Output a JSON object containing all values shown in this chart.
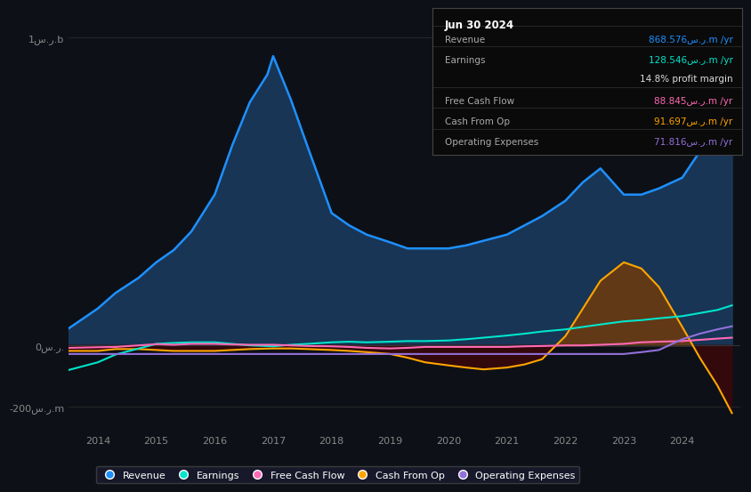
{
  "bg_color": "#0d1117",
  "plot_bg_color": "#0d1117",
  "xlim": [
    2013.5,
    2025.0
  ],
  "ylim": [
    -280,
    1080
  ],
  "yticks": [
    -200,
    0,
    1000
  ],
  "ytick_labels": [
    "-200س.ر.m",
    "0س.ر.",
    "1س.ر.b"
  ],
  "xticks": [
    2014,
    2015,
    2016,
    2017,
    2018,
    2019,
    2020,
    2021,
    2022,
    2023,
    2024
  ],
  "revenue_color": "#1e90ff",
  "revenue_fill": "#1a3a5c",
  "earnings_color": "#00e5cc",
  "fcf_color": "#ff69b4",
  "cashop_color": "#ffa500",
  "opex_color": "#9370db",
  "legend": [
    {
      "label": "Revenue",
      "color": "#1e90ff"
    },
    {
      "label": "Earnings",
      "color": "#00e5cc"
    },
    {
      "label": "Free Cash Flow",
      "color": "#ff69b4"
    },
    {
      "label": "Cash From Op",
      "color": "#ffa500"
    },
    {
      "label": "Operating Expenses",
      "color": "#9370db"
    }
  ],
  "revenue_x": [
    2013.5,
    2014.0,
    2014.3,
    2014.7,
    2015.0,
    2015.3,
    2015.6,
    2016.0,
    2016.3,
    2016.6,
    2016.9,
    2017.0,
    2017.3,
    2017.6,
    2018.0,
    2018.3,
    2018.6,
    2019.0,
    2019.3,
    2019.6,
    2020.0,
    2020.3,
    2020.6,
    2021.0,
    2021.3,
    2021.6,
    2022.0,
    2022.3,
    2022.6,
    2023.0,
    2023.3,
    2023.6,
    2024.0,
    2024.3,
    2024.6,
    2024.85
  ],
  "revenue_y": [
    55,
    120,
    170,
    220,
    270,
    310,
    370,
    490,
    650,
    790,
    880,
    940,
    800,
    640,
    430,
    390,
    360,
    335,
    315,
    315,
    315,
    325,
    340,
    360,
    390,
    420,
    470,
    530,
    575,
    490,
    490,
    510,
    545,
    630,
    730,
    820
  ],
  "earnings_x": [
    2013.5,
    2014.0,
    2014.3,
    2014.7,
    2015.0,
    2015.3,
    2015.6,
    2016.0,
    2016.3,
    2016.6,
    2017.0,
    2017.3,
    2017.6,
    2018.0,
    2018.3,
    2018.6,
    2019.0,
    2019.3,
    2019.6,
    2020.0,
    2020.3,
    2020.6,
    2021.0,
    2021.3,
    2021.6,
    2022.0,
    2022.3,
    2022.6,
    2023.0,
    2023.3,
    2023.6,
    2024.0,
    2024.3,
    2024.6,
    2024.85
  ],
  "earnings_y": [
    -80,
    -55,
    -30,
    -10,
    5,
    8,
    10,
    10,
    5,
    0,
    -3,
    2,
    5,
    10,
    12,
    10,
    12,
    14,
    14,
    16,
    20,
    25,
    32,
    38,
    45,
    52,
    60,
    68,
    78,
    82,
    88,
    95,
    105,
    115,
    130
  ],
  "fcf_x": [
    2013.5,
    2014.0,
    2014.3,
    2014.7,
    2015.0,
    2015.3,
    2015.6,
    2016.0,
    2016.3,
    2016.6,
    2017.0,
    2017.3,
    2017.6,
    2018.0,
    2018.3,
    2018.6,
    2019.0,
    2019.3,
    2019.6,
    2020.0,
    2020.3,
    2020.6,
    2021.0,
    2021.3,
    2021.6,
    2022.0,
    2022.3,
    2022.6,
    2023.0,
    2023.3,
    2023.6,
    2024.0,
    2024.3,
    2024.6,
    2024.85
  ],
  "fcf_y": [
    -8,
    -6,
    -5,
    0,
    4,
    2,
    5,
    5,
    3,
    2,
    2,
    0,
    -2,
    -3,
    -5,
    -8,
    -10,
    -8,
    -5,
    -5,
    -5,
    -5,
    -5,
    -3,
    -2,
    0,
    0,
    2,
    5,
    10,
    12,
    14,
    18,
    22,
    25
  ],
  "cashop_x": [
    2013.5,
    2014.0,
    2014.3,
    2014.7,
    2015.0,
    2015.3,
    2015.6,
    2016.0,
    2016.3,
    2016.6,
    2017.0,
    2017.3,
    2017.6,
    2018.0,
    2018.3,
    2018.6,
    2019.0,
    2019.3,
    2019.6,
    2020.0,
    2020.3,
    2020.6,
    2021.0,
    2021.3,
    2021.6,
    2022.0,
    2022.3,
    2022.6,
    2023.0,
    2023.3,
    2023.6,
    2024.0,
    2024.3,
    2024.6,
    2024.85
  ],
  "cashop_y": [
    -18,
    -18,
    -12,
    -12,
    -15,
    -18,
    -18,
    -18,
    -15,
    -12,
    -10,
    -10,
    -12,
    -15,
    -18,
    -22,
    -28,
    -40,
    -55,
    -65,
    -72,
    -78,
    -72,
    -62,
    -45,
    30,
    120,
    210,
    270,
    250,
    190,
    60,
    -40,
    -130,
    -220
  ],
  "opex_x": [
    2013.5,
    2014.0,
    2014.3,
    2014.7,
    2015.0,
    2015.3,
    2015.6,
    2016.0,
    2016.3,
    2016.6,
    2017.0,
    2017.3,
    2017.6,
    2018.0,
    2018.3,
    2018.6,
    2019.0,
    2019.3,
    2019.6,
    2020.0,
    2020.3,
    2020.6,
    2021.0,
    2021.3,
    2021.6,
    2022.0,
    2022.3,
    2022.6,
    2023.0,
    2023.3,
    2023.6,
    2024.0,
    2024.3,
    2024.6,
    2024.85
  ],
  "opex_y": [
    -28,
    -28,
    -28,
    -28,
    -28,
    -28,
    -28,
    -28,
    -28,
    -28,
    -28,
    -28,
    -28,
    -28,
    -28,
    -28,
    -28,
    -28,
    -28,
    -28,
    -28,
    -28,
    -28,
    -28,
    -28,
    -28,
    -28,
    -28,
    -28,
    -22,
    -15,
    20,
    38,
    52,
    62
  ],
  "infobox": {
    "title": "Jun 30 2024",
    "rows": [
      {
        "label": "Revenue",
        "value": "868.576س.ر.m /yr",
        "color": "#1e90ff",
        "divider_before": true
      },
      {
        "label": "Earnings",
        "value": "128.546س.ر.m /yr",
        "color": "#00e5cc",
        "divider_before": true
      },
      {
        "label": "",
        "value": "14.8% profit margin",
        "color": "#dddddd",
        "divider_before": false
      },
      {
        "label": "Free Cash Flow",
        "value": "88.845س.ر.m /yr",
        "color": "#ff69b4",
        "divider_before": true
      },
      {
        "label": "Cash From Op",
        "value": "91.697س.ر.m /yr",
        "color": "#ffa500",
        "divider_before": true
      },
      {
        "label": "Operating Expenses",
        "value": "71.816س.ر.m /yr",
        "color": "#9370db",
        "divider_before": true
      }
    ]
  }
}
